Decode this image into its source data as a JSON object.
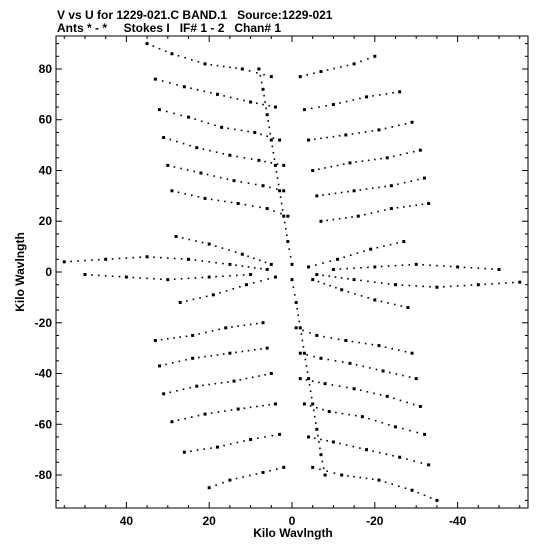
{
  "header": {
    "line1": "V vs U for 1229-021.C BAND.1   Source:1229-021",
    "line2": "Ants * - *     Stokes I   IF# 1 - 2   Chan# 1"
  },
  "chart_data": {
    "type": "scatter",
    "title": "V vs U for 1229-021.C BAND.1   Source:1229-021",
    "subtitle": "Ants * - *     Stokes I   IF# 1 - 2   Chan# 1",
    "xlabel": "Kilo Wavlngth",
    "ylabel": "Kilo Wavlngth",
    "xlim": [
      57,
      -57
    ],
    "ylim": [
      -93,
      93
    ],
    "x_reversed": true,
    "x_ticks": [
      40,
      20,
      0,
      -20,
      -40
    ],
    "x_tick_labels": [
      "40",
      "20",
      "0",
      "-20",
      "-40"
    ],
    "y_ticks": [
      80,
      60,
      40,
      20,
      0,
      -20,
      -40,
      -60,
      -80
    ],
    "y_tick_labels": [
      "80",
      "60",
      "40",
      "20",
      "0",
      "-20",
      "-40",
      "-60",
      "-80"
    ],
    "grid": false,
    "point_color": "#000000",
    "uv_arms": [
      {
        "name": "",
        "points": [
          [
            35,
            90
          ],
          [
            29,
            86
          ],
          [
            21,
            82
          ],
          [
            12,
            80
          ],
          [
            5,
            77
          ]
        ]
      },
      {
        "name": "",
        "points": [
          [
            -20,
            85
          ],
          [
            -15,
            82
          ],
          [
            -7,
            79
          ],
          [
            -2,
            77
          ]
        ]
      },
      {
        "name": "",
        "points": [
          [
            33,
            76
          ],
          [
            26,
            73
          ],
          [
            18,
            70
          ],
          [
            10,
            67
          ],
          [
            4,
            65
          ]
        ]
      },
      {
        "name": "",
        "points": [
          [
            -26,
            71
          ],
          [
            -18,
            69
          ],
          [
            -10,
            66
          ],
          [
            -3,
            64
          ]
        ]
      },
      {
        "name": "",
        "points": [
          [
            32,
            64
          ],
          [
            25,
            61
          ],
          [
            17,
            57
          ],
          [
            9,
            55
          ],
          [
            3,
            52
          ]
        ]
      },
      {
        "name": "",
        "points": [
          [
            -29,
            59
          ],
          [
            -21,
            56
          ],
          [
            -13,
            54
          ],
          [
            -4,
            52
          ]
        ]
      },
      {
        "name": "",
        "points": [
          [
            31,
            53
          ],
          [
            23,
            49
          ],
          [
            15,
            46
          ],
          [
            8,
            44
          ],
          [
            2,
            42
          ]
        ]
      },
      {
        "name": "",
        "points": [
          [
            -31,
            48
          ],
          [
            -23,
            45
          ],
          [
            -14,
            43
          ],
          [
            -5,
            40
          ]
        ]
      },
      {
        "name": "",
        "points": [
          [
            30,
            42
          ],
          [
            22,
            39
          ],
          [
            14,
            36
          ],
          [
            7,
            34
          ],
          [
            2,
            32
          ]
        ]
      },
      {
        "name": "",
        "points": [
          [
            -32,
            37
          ],
          [
            -24,
            34
          ],
          [
            -15,
            32
          ],
          [
            -6,
            30
          ]
        ]
      },
      {
        "name": "",
        "points": [
          [
            29,
            32
          ],
          [
            21,
            29
          ],
          [
            13,
            27
          ],
          [
            6,
            25
          ],
          [
            1,
            22
          ]
        ]
      },
      {
        "name": "",
        "points": [
          [
            -33,
            27
          ],
          [
            -24,
            25
          ],
          [
            -16,
            22
          ],
          [
            -7,
            20
          ]
        ]
      },
      {
        "name": "",
        "points": [
          [
            8,
            80
          ],
          [
            7,
            72
          ],
          [
            6,
            62
          ],
          [
            5,
            52
          ],
          [
            4,
            42
          ],
          [
            3,
            32
          ],
          [
            2,
            22
          ],
          [
            1,
            12
          ],
          [
            0,
            3
          ]
        ]
      },
      {
        "name": "",
        "points": [
          [
            55,
            4
          ],
          [
            45,
            5
          ],
          [
            35,
            6
          ],
          [
            25,
            5
          ],
          [
            15,
            3
          ],
          [
            6,
            1
          ]
        ]
      },
      {
        "name": "",
        "points": [
          [
            -55,
            -4
          ],
          [
            -45,
            -5
          ],
          [
            -35,
            -6
          ],
          [
            -25,
            -5
          ],
          [
            -15,
            -3
          ],
          [
            -6,
            -1
          ]
        ]
      },
      {
        "name": "",
        "points": [
          [
            50,
            -1
          ],
          [
            40,
            -2
          ],
          [
            30,
            -3
          ],
          [
            20,
            -2
          ],
          [
            10,
            -1
          ]
        ]
      },
      {
        "name": "",
        "points": [
          [
            -50,
            1
          ],
          [
            -40,
            2
          ],
          [
            -30,
            3
          ],
          [
            -20,
            2
          ],
          [
            -10,
            1
          ]
        ]
      },
      {
        "name": "",
        "points": [
          [
            28,
            14
          ],
          [
            20,
            11
          ],
          [
            12,
            7
          ],
          [
            5,
            3
          ]
        ]
      },
      {
        "name": "",
        "points": [
          [
            -28,
            -14
          ],
          [
            -20,
            -11
          ],
          [
            -12,
            -7
          ],
          [
            -5,
            -3
          ]
        ]
      },
      {
        "name": "",
        "points": [
          [
            -27,
            12
          ],
          [
            -19,
            9
          ],
          [
            -11,
            5
          ],
          [
            -4,
            2
          ]
        ]
      },
      {
        "name": "",
        "points": [
          [
            27,
            -12
          ],
          [
            19,
            -9
          ],
          [
            11,
            -5
          ],
          [
            4,
            -2
          ]
        ]
      },
      {
        "name": "",
        "points": [
          [
            -35,
            -90
          ],
          [
            -29,
            -86
          ],
          [
            -21,
            -82
          ],
          [
            -12,
            -80
          ],
          [
            -5,
            -77
          ]
        ]
      },
      {
        "name": "",
        "points": [
          [
            20,
            -85
          ],
          [
            15,
            -82
          ],
          [
            7,
            -79
          ],
          [
            2,
            -77
          ]
        ]
      },
      {
        "name": "",
        "points": [
          [
            -33,
            -76
          ],
          [
            -26,
            -73
          ],
          [
            -18,
            -70
          ],
          [
            -10,
            -67
          ],
          [
            -4,
            -65
          ]
        ]
      },
      {
        "name": "",
        "points": [
          [
            26,
            -71
          ],
          [
            18,
            -69
          ],
          [
            10,
            -66
          ],
          [
            3,
            -64
          ]
        ]
      },
      {
        "name": "",
        "points": [
          [
            -32,
            -64
          ],
          [
            -25,
            -61
          ],
          [
            -17,
            -57
          ],
          [
            -9,
            -55
          ],
          [
            -3,
            -52
          ]
        ]
      },
      {
        "name": "",
        "points": [
          [
            29,
            -59
          ],
          [
            21,
            -56
          ],
          [
            13,
            -54
          ],
          [
            4,
            -52
          ]
        ]
      },
      {
        "name": "",
        "points": [
          [
            -31,
            -53
          ],
          [
            -23,
            -49
          ],
          [
            -15,
            -46
          ],
          [
            -8,
            -44
          ],
          [
            -2,
            -42
          ]
        ]
      },
      {
        "name": "",
        "points": [
          [
            31,
            -48
          ],
          [
            23,
            -45
          ],
          [
            14,
            -43
          ],
          [
            5,
            -40
          ]
        ]
      },
      {
        "name": "",
        "points": [
          [
            -30,
            -42
          ],
          [
            -22,
            -39
          ],
          [
            -14,
            -36
          ],
          [
            -7,
            -34
          ],
          [
            -2,
            -32
          ]
        ]
      },
      {
        "name": "",
        "points": [
          [
            32,
            -37
          ],
          [
            24,
            -34
          ],
          [
            15,
            -32
          ],
          [
            6,
            -30
          ]
        ]
      },
      {
        "name": "",
        "points": [
          [
            -29,
            -32
          ],
          [
            -21,
            -29
          ],
          [
            -13,
            -27
          ],
          [
            -6,
            -25
          ],
          [
            -1,
            -22
          ]
        ]
      },
      {
        "name": "",
        "points": [
          [
            33,
            -27
          ],
          [
            24,
            -25
          ],
          [
            16,
            -22
          ],
          [
            7,
            -20
          ]
        ]
      },
      {
        "name": "",
        "points": [
          [
            -8,
            -80
          ],
          [
            -7,
            -72
          ],
          [
            -6,
            -62
          ],
          [
            -5,
            -52
          ],
          [
            -4,
            -42
          ],
          [
            -3,
            -32
          ],
          [
            -2,
            -22
          ],
          [
            -1,
            -12
          ],
          [
            0,
            -3
          ]
        ]
      }
    ]
  }
}
